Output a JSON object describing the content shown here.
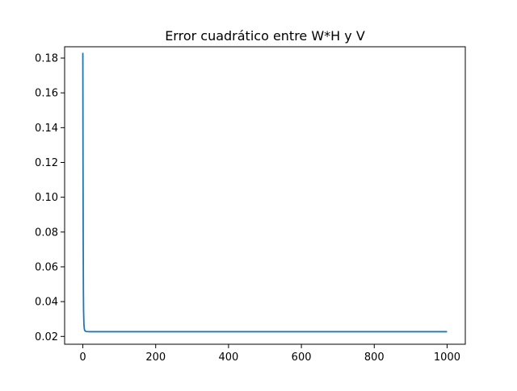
{
  "chart_data": {
    "type": "line",
    "title": "Error cuadrático entre W*H y V",
    "xlabel": "",
    "ylabel": "",
    "xlim": [
      -50,
      1050
    ],
    "ylim": [
      0.0155,
      0.1865
    ],
    "xticks": [
      0,
      200,
      400,
      600,
      800,
      1000
    ],
    "xtick_labels": [
      "0",
      "200",
      "400",
      "600",
      "800",
      "1000"
    ],
    "yticks": [
      0.02,
      0.04,
      0.06,
      0.08,
      0.1,
      0.12,
      0.14,
      0.16,
      0.18
    ],
    "ytick_labels": [
      "0.02",
      "0.04",
      "0.06",
      "0.08",
      "0.10",
      "0.12",
      "0.14",
      "0.16",
      "0.18"
    ],
    "grid": false,
    "legend": "none",
    "series": [
      {
        "color": "#1f77b4",
        "x": [
          0,
          0.5,
          1,
          1.5,
          2,
          3,
          4,
          5,
          7,
          10,
          20,
          50,
          100,
          200,
          400,
          600,
          800,
          1000
        ],
        "y": [
          0.183,
          0.12,
          0.075,
          0.048,
          0.035,
          0.027,
          0.0245,
          0.0235,
          0.023,
          0.0228,
          0.0227,
          0.0227,
          0.0227,
          0.0227,
          0.0227,
          0.0227,
          0.0227,
          0.0227
        ]
      }
    ]
  }
}
